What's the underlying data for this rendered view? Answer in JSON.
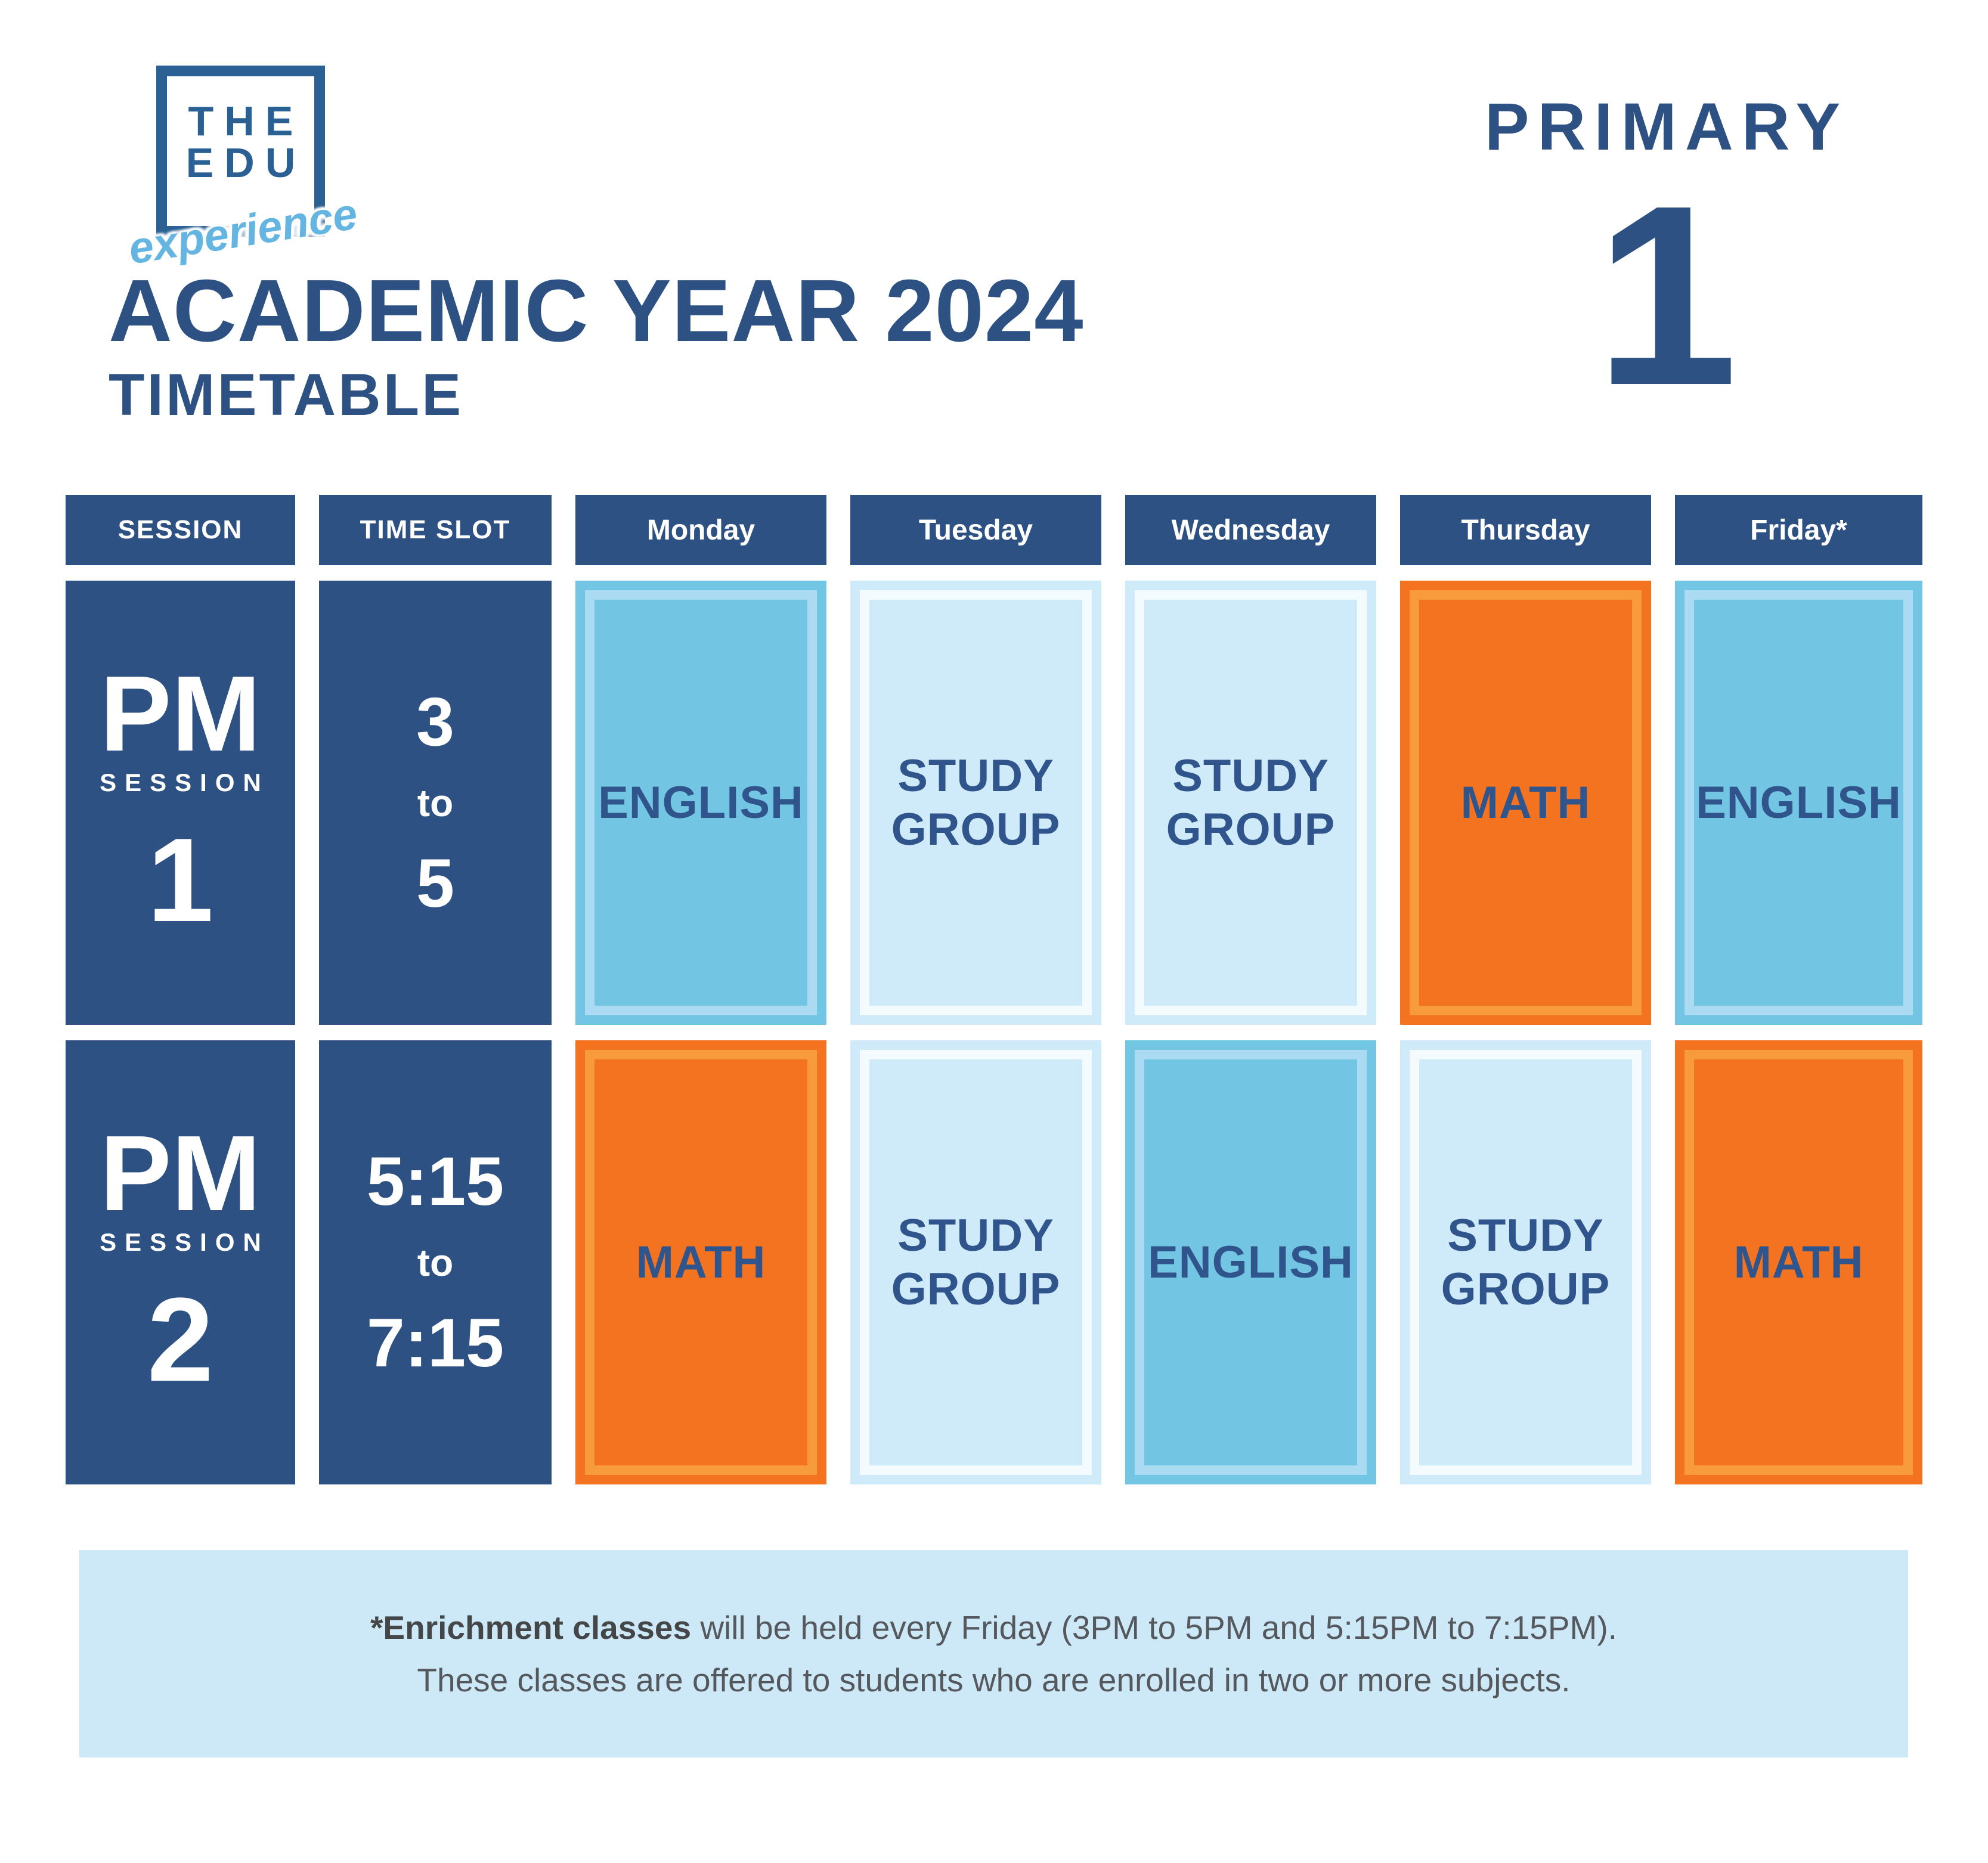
{
  "logo": {
    "line1": "THE",
    "line2": "EDU",
    "script": "experience"
  },
  "grade": {
    "label": "PRIMARY",
    "number": "1"
  },
  "title": {
    "main": "ACADEMIC YEAR 2024",
    "sub": "TIMETABLE"
  },
  "table": {
    "headers": [
      "SESSION",
      "TIME SLOT",
      "Monday",
      "Tuesday",
      "Wednesday",
      "Thursday",
      "Friday*"
    ],
    "rows": [
      {
        "session": {
          "period": "PM",
          "label": "SESSION",
          "number": "1"
        },
        "time": {
          "start": "3",
          "mid": "to",
          "end": "5"
        },
        "cells": [
          {
            "subject": "ENGLISH",
            "style": "english"
          },
          {
            "subject": "STUDY GROUP",
            "style": "study"
          },
          {
            "subject": "STUDY GROUP",
            "style": "study"
          },
          {
            "subject": "MATH",
            "style": "math"
          },
          {
            "subject": "ENGLISH",
            "style": "english"
          }
        ]
      },
      {
        "session": {
          "period": "PM",
          "label": "SESSION",
          "number": "2"
        },
        "time": {
          "start": "5:15",
          "mid": "to",
          "end": "7:15"
        },
        "cells": [
          {
            "subject": "MATH",
            "style": "math"
          },
          {
            "subject": "STUDY GROUP",
            "style": "study"
          },
          {
            "subject": "ENGLISH",
            "style": "english"
          },
          {
            "subject": "STUDY GROUP",
            "style": "study"
          },
          {
            "subject": "MATH",
            "style": "math"
          }
        ]
      }
    ]
  },
  "footnote": {
    "bold": "*Enrichment classes",
    "line1_rest": " will be held every Friday (3PM to 5PM and 5:15PM to 7:15PM).",
    "line2": "These classes are offered to students who are enrolled in two or more subjects."
  },
  "colors": {
    "navy": "#2d5183",
    "cell_text": "#30548c",
    "english_fill": "#73c6e3",
    "english_stroke": "#abdbf3",
    "study_fill": "#cfeaf8",
    "study_stroke": "#f3fbfe",
    "math_fill": "#f37321",
    "math_stroke": "#f89b3d",
    "logo_blue": "#2a6093",
    "script_blue": "#64b5e2",
    "footnote_bg": "#cde9f8",
    "footnote_text": "#55585c",
    "footnote_bold": "#454648"
  }
}
